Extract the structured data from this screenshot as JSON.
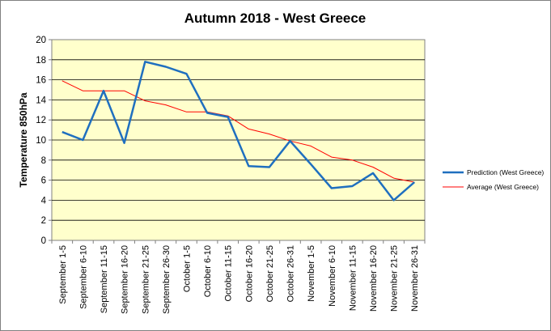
{
  "chart_data": {
    "type": "line",
    "title": "Autumn 2018 - West Greece",
    "xlabel": "",
    "ylabel": "Temperature 850hPa",
    "ylim": [
      0,
      20
    ],
    "yticks": [
      "0",
      "2",
      "4",
      "6",
      "8",
      "10",
      "12",
      "14",
      "16",
      "18",
      "20"
    ],
    "grid": true,
    "legend_position": "right",
    "categories": [
      "September 1-5",
      "September 6-10",
      "September 11-15",
      "September 16-20",
      "September 21-25",
      "September 26-30",
      "October 1-5",
      "October 6-10",
      "October 11-15",
      "October 16-20",
      "October 21-25",
      "October 26-31",
      "November 1-5",
      "November 6-10",
      "November 11-15",
      "November 16-20",
      "November 21-25",
      "November 26-31"
    ],
    "series": [
      {
        "name": "Prediction (West Greece)",
        "color": "#1f6fbf",
        "values": [
          10.8,
          10.0,
          14.9,
          9.7,
          17.8,
          17.3,
          16.6,
          12.7,
          12.3,
          7.4,
          7.3,
          9.9,
          7.6,
          5.2,
          5.4,
          6.7,
          4.0,
          5.8
        ]
      },
      {
        "name": "Average (West Greece)",
        "color": "#ff0000",
        "values": [
          15.9,
          14.9,
          14.9,
          14.9,
          13.9,
          13.5,
          12.8,
          12.8,
          12.4,
          11.1,
          10.6,
          9.9,
          9.4,
          8.3,
          8.0,
          7.3,
          6.2,
          5.8
        ]
      }
    ],
    "plot_background": "#ffffcc",
    "frame_background": "#ffffff",
    "border_color": "#808080"
  }
}
